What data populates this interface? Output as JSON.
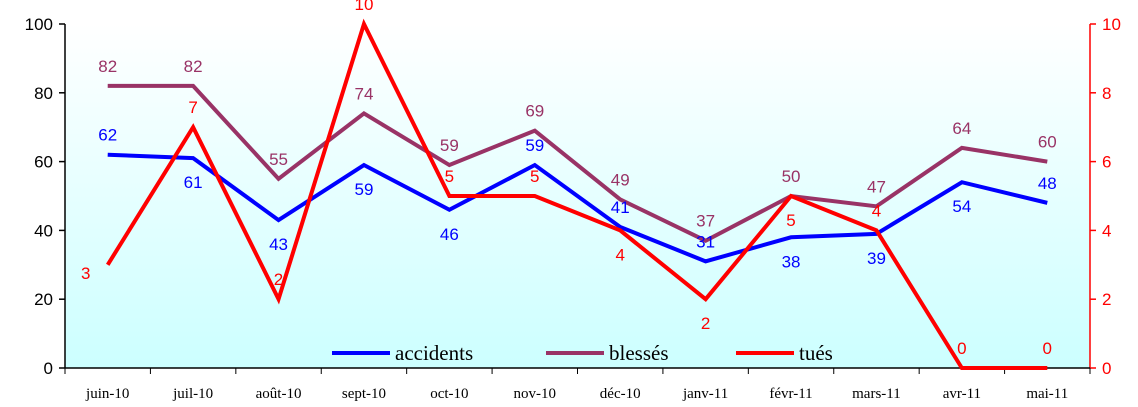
{
  "chart_data": {
    "type": "line",
    "categories": [
      "juin-10",
      "juil-10",
      "août-10",
      "sept-10",
      "oct-10",
      "nov-10",
      "déc-10",
      "janv-11",
      "févr-11",
      "mars-11",
      "avr-11",
      "mai-11"
    ],
    "series": [
      {
        "name": "accidents",
        "axis": "left",
        "color": "#0000ff",
        "values": [
          62,
          61,
          43,
          59,
          46,
          59,
          41,
          31,
          38,
          39,
          54,
          48
        ]
      },
      {
        "name": "blessés",
        "axis": "left",
        "color": "#993366",
        "values": [
          82,
          82,
          55,
          74,
          59,
          69,
          49,
          37,
          50,
          47,
          64,
          60
        ]
      },
      {
        "name": "tués",
        "axis": "right",
        "color": "#ff0000",
        "values": [
          3,
          7,
          2,
          10,
          5,
          5,
          4,
          2,
          5,
          4,
          0,
          0
        ]
      }
    ],
    "yleft": {
      "lim": [
        0,
        100
      ],
      "ticks": [
        "0",
        "20",
        "40",
        "60",
        "80",
        "100"
      ],
      "color": "#000000"
    },
    "yright": {
      "lim": [
        0,
        10
      ],
      "ticks": [
        "0",
        "2",
        "4",
        "6",
        "8",
        "10"
      ],
      "color": "#ff0000"
    },
    "grid": false,
    "legend_position": "bottom-center",
    "background_gradient": [
      "#ffffff",
      "#ccffff"
    ]
  }
}
